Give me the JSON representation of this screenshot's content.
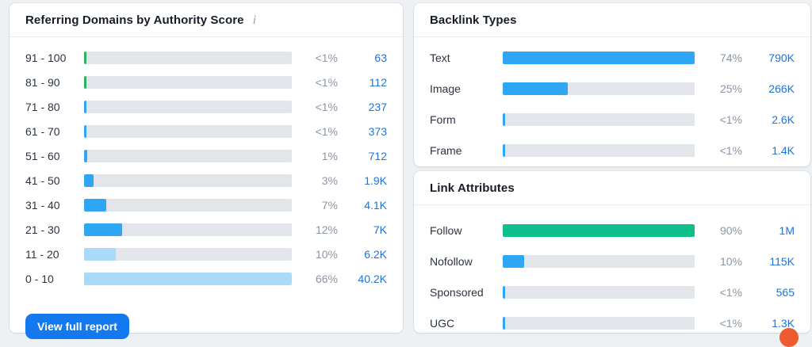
{
  "colors": {
    "blue": "#2EA6F4",
    "light_blue": "#A9DAF8",
    "green": "#2BB45F",
    "jade": "#0EBE8B",
    "track": "#E2E5E9",
    "link": "#2173D8",
    "button": "#1478EF"
  },
  "referring_domains": {
    "title": "Referring Domains by Authority Score",
    "info_icon": "i",
    "button_label": "View full report",
    "max_value": 66,
    "rows": [
      {
        "label": "91 - 100",
        "value": 0.5,
        "pct": "<1%",
        "count": "63",
        "color": "green"
      },
      {
        "label": "81 - 90",
        "value": 0.5,
        "pct": "<1%",
        "count": "112",
        "color": "green"
      },
      {
        "label": "71 - 80",
        "value": 0.5,
        "pct": "<1%",
        "count": "237",
        "color": "blue"
      },
      {
        "label": "61 - 70",
        "value": 0.5,
        "pct": "<1%",
        "count": "373",
        "color": "blue"
      },
      {
        "label": "51 - 60",
        "value": 1,
        "pct": "1%",
        "count": "712",
        "color": "blue"
      },
      {
        "label": "41 - 50",
        "value": 3,
        "pct": "3%",
        "count": "1.9K",
        "color": "blue"
      },
      {
        "label": "31 - 40",
        "value": 7,
        "pct": "7%",
        "count": "4.1K",
        "color": "blue"
      },
      {
        "label": "21 - 30",
        "value": 12,
        "pct": "12%",
        "count": "7K",
        "color": "blue"
      },
      {
        "label": "11 - 20",
        "value": 10,
        "pct": "10%",
        "count": "6.2K",
        "color": "light_blue"
      },
      {
        "label": "0 - 10",
        "value": 66,
        "pct": "66%",
        "count": "40.2K",
        "color": "light_blue"
      }
    ]
  },
  "backlink_types": {
    "title": "Backlink Types",
    "max_value": 74,
    "rows": [
      {
        "label": "Text",
        "value": 74,
        "pct": "74%",
        "count": "790K",
        "color": "blue"
      },
      {
        "label": "Image",
        "value": 25,
        "pct": "25%",
        "count": "266K",
        "color": "blue"
      },
      {
        "label": "Form",
        "value": 0.5,
        "pct": "<1%",
        "count": "2.6K",
        "color": "blue"
      },
      {
        "label": "Frame",
        "value": 0.5,
        "pct": "<1%",
        "count": "1.4K",
        "color": "blue"
      }
    ]
  },
  "link_attributes": {
    "title": "Link Attributes",
    "max_value": 90,
    "rows": [
      {
        "label": "Follow",
        "value": 90,
        "pct": "90%",
        "count": "1M",
        "color": "jade"
      },
      {
        "label": "Nofollow",
        "value": 10,
        "pct": "10%",
        "count": "115K",
        "color": "blue"
      },
      {
        "label": "Sponsored",
        "value": 0.5,
        "pct": "<1%",
        "count": "565",
        "color": "blue"
      },
      {
        "label": "UGC",
        "value": 0.5,
        "pct": "<1%",
        "count": "1.3K",
        "color": "blue"
      }
    ]
  }
}
